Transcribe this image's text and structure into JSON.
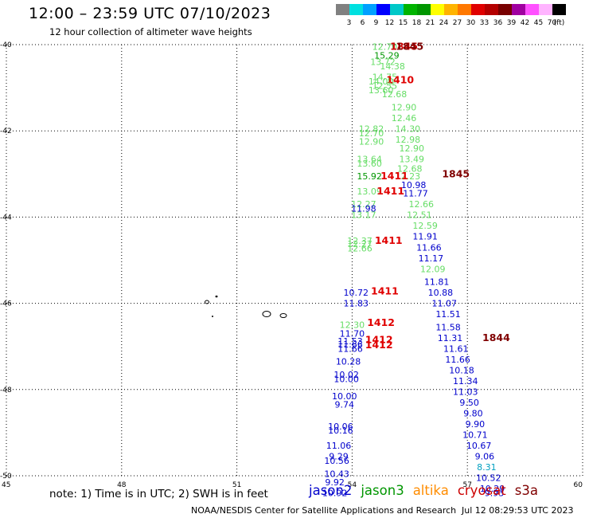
{
  "header": {
    "title": "12:00 – 23:59 UTC 07/10/2023",
    "subtitle": "12 hour collection of altimeter wave heights"
  },
  "colorbar": {
    "colors": [
      "#808080",
      "#00e0e0",
      "#00a0ff",
      "#0000ff",
      "#00c8c8",
      "#00b400",
      "#009600",
      "#ffff00",
      "#ffb400",
      "#ff7800",
      "#e00000",
      "#b40000",
      "#780000",
      "#a000a0",
      "#ff50ff",
      "#ffb4ff",
      "#000000"
    ],
    "labels": [
      "3",
      "6",
      "9",
      "12",
      "15",
      "18",
      "21",
      "24",
      "27",
      "30",
      "33",
      "36",
      "39",
      "42",
      "45",
      "70",
      "(ft)"
    ]
  },
  "footer": {
    "note": "note: 1) Time is in UTC; 2) SWH is in feet",
    "credit": "NOAA/NESDIS Center for Satellite Applications and Research",
    "timestamp": "Jul 12 08:29:53 UTC 2023"
  },
  "satellites": [
    {
      "name": "jason2",
      "color": "#0000cc"
    },
    {
      "name": "jason3",
      "color": "#009600"
    },
    {
      "name": "altika",
      "color": "#ff8c00"
    },
    {
      "name": "cryosat",
      "color": "#cc0000"
    },
    {
      "name": "s3a",
      "color": "#800000"
    }
  ],
  "chart_data": {
    "type": "scatter",
    "xlim": [
      45,
      60
    ],
    "ylim": [
      -50,
      -40
    ],
    "xticks": [
      "45",
      "48",
      "51",
      "54",
      "57",
      "60"
    ],
    "yticks": [
      "-40",
      "-42",
      "-44",
      "-46",
      "-48",
      "-50"
    ],
    "grid": true,
    "values": [
      {
        "x": 54.85,
        "y": -40.05,
        "text": "12.70",
        "color": "#66dd66"
      },
      {
        "x": 55.35,
        "y": -40.05,
        "text": "1845",
        "color": "#cc0000"
      },
      {
        "x": 55.5,
        "y": -40.05,
        "text": "1845",
        "color": "#800000"
      },
      {
        "x": 54.9,
        "y": -40.25,
        "text": "15.29",
        "color": "#009600"
      },
      {
        "x": 54.8,
        "y": -40.4,
        "text": "13.72",
        "color": "#66dd66"
      },
      {
        "x": 55.05,
        "y": -40.5,
        "text": "14.38",
        "color": "#66dd66"
      },
      {
        "x": 54.85,
        "y": -40.75,
        "text": "14.75",
        "color": "#66dd66"
      },
      {
        "x": 54.75,
        "y": -40.85,
        "text": "14.00",
        "color": "#66dd66"
      },
      {
        "x": 55.25,
        "y": -40.82,
        "text": "1410",
        "color": "#e00000"
      },
      {
        "x": 54.85,
        "y": -40.95,
        "text": "12.55",
        "color": "#66dd66"
      },
      {
        "x": 54.75,
        "y": -41.05,
        "text": "13.60",
        "color": "#66dd66"
      },
      {
        "x": 55.1,
        "y": -41.15,
        "text": "12.68",
        "color": "#66dd66"
      },
      {
        "x": 55.35,
        "y": -41.45,
        "text": "12.90",
        "color": "#66dd66"
      },
      {
        "x": 55.35,
        "y": -41.7,
        "text": "12.46",
        "color": "#66dd66"
      },
      {
        "x": 54.5,
        "y": -41.95,
        "text": "12.82",
        "color": "#66dd66"
      },
      {
        "x": 55.45,
        "y": -41.95,
        "text": "14.30",
        "color": "#66dd66"
      },
      {
        "x": 54.5,
        "y": -42.05,
        "text": "12.70",
        "color": "#66dd66"
      },
      {
        "x": 55.45,
        "y": -42.2,
        "text": "12.98",
        "color": "#66dd66"
      },
      {
        "x": 54.5,
        "y": -42.25,
        "text": "12.90",
        "color": "#66dd66"
      },
      {
        "x": 55.55,
        "y": -42.4,
        "text": "12.90",
        "color": "#66dd66"
      },
      {
        "x": 54.45,
        "y": -42.65,
        "text": "13.64",
        "color": "#66dd66"
      },
      {
        "x": 55.55,
        "y": -42.65,
        "text": "13.49",
        "color": "#66dd66"
      },
      {
        "x": 54.45,
        "y": -42.75,
        "text": "13.60",
        "color": "#66dd66"
      },
      {
        "x": 55.5,
        "y": -42.87,
        "text": "12.68",
        "color": "#66dd66"
      },
      {
        "x": 55.45,
        "y": -43.05,
        "text": "12.23",
        "color": "#66dd66"
      },
      {
        "x": 54.45,
        "y": -43.05,
        "text": "15.92",
        "color": "#009600"
      },
      {
        "x": 55.1,
        "y": -43.05,
        "text": "1411",
        "color": "#e00000"
      },
      {
        "x": 56.7,
        "y": -43.0,
        "text": "1845",
        "color": "#800000"
      },
      {
        "x": 55.6,
        "y": -43.25,
        "text": "10.98",
        "color": "#0000cc"
      },
      {
        "x": 54.45,
        "y": -43.4,
        "text": "13.09",
        "color": "#66dd66"
      },
      {
        "x": 55.0,
        "y": -43.4,
        "text": "1411",
        "color": "#e00000"
      },
      {
        "x": 55.65,
        "y": -43.45,
        "text": "11.77",
        "color": "#0000cc"
      },
      {
        "x": 54.3,
        "y": -43.7,
        "text": "12.27",
        "color": "#66dd66"
      },
      {
        "x": 54.3,
        "y": -43.8,
        "text": "11.98",
        "color": "#0000cc"
      },
      {
        "x": 55.8,
        "y": -43.7,
        "text": "12.66",
        "color": "#66dd66"
      },
      {
        "x": 54.3,
        "y": -43.95,
        "text": "13.17",
        "color": "#66dd66"
      },
      {
        "x": 55.75,
        "y": -43.95,
        "text": "12.51",
        "color": "#66dd66"
      },
      {
        "x": 55.9,
        "y": -44.2,
        "text": "12.59",
        "color": "#66dd66"
      },
      {
        "x": 54.2,
        "y": -44.55,
        "text": "12.37",
        "color": "#66dd66"
      },
      {
        "x": 54.2,
        "y": -44.62,
        "text": "12.27",
        "color": "#66dd66"
      },
      {
        "x": 54.2,
        "y": -44.72,
        "text": "12.66",
        "color": "#66dd66"
      },
      {
        "x": 54.95,
        "y": -44.55,
        "text": "1411",
        "color": "#e00000"
      },
      {
        "x": 55.9,
        "y": -44.45,
        "text": "11.91",
        "color": "#0000cc"
      },
      {
        "x": 56.0,
        "y": -44.7,
        "text": "11.66",
        "color": "#0000cc"
      },
      {
        "x": 56.05,
        "y": -44.95,
        "text": "11.17",
        "color": "#0000cc"
      },
      {
        "x": 56.1,
        "y": -45.2,
        "text": "12.09",
        "color": "#66dd66"
      },
      {
        "x": 56.2,
        "y": -45.5,
        "text": "11.81",
        "color": "#0000cc"
      },
      {
        "x": 54.1,
        "y": -45.75,
        "text": "10.72",
        "color": "#0000cc"
      },
      {
        "x": 54.85,
        "y": -45.72,
        "text": "1411",
        "color": "#e00000"
      },
      {
        "x": 56.3,
        "y": -45.75,
        "text": "10.88",
        "color": "#0000cc"
      },
      {
        "x": 54.1,
        "y": -46.0,
        "text": "11.83",
        "color": "#0000cc"
      },
      {
        "x": 56.4,
        "y": -46.0,
        "text": "11.07",
        "color": "#0000cc"
      },
      {
        "x": 56.5,
        "y": -46.25,
        "text": "11.51",
        "color": "#0000cc"
      },
      {
        "x": 56.5,
        "y": -46.55,
        "text": "11.58",
        "color": "#0000cc"
      },
      {
        "x": 54.0,
        "y": -46.5,
        "text": "12.30",
        "color": "#66dd66"
      },
      {
        "x": 54.75,
        "y": -46.45,
        "text": "1412",
        "color": "#e00000"
      },
      {
        "x": 56.55,
        "y": -46.8,
        "text": "11.31",
        "color": "#0000cc"
      },
      {
        "x": 57.75,
        "y": -46.8,
        "text": "1844",
        "color": "#800000"
      },
      {
        "x": 54.0,
        "y": -46.7,
        "text": "11.70",
        "color": "#0000cc"
      },
      {
        "x": 53.95,
        "y": -46.88,
        "text": "11.53",
        "color": "#0000cc"
      },
      {
        "x": 53.95,
        "y": -46.95,
        "text": "11.66",
        "color": "#0000cc"
      },
      {
        "x": 53.95,
        "y": -47.05,
        "text": "11.66",
        "color": "#0000cc"
      },
      {
        "x": 54.7,
        "y": -46.85,
        "text": "1412",
        "color": "#e00000"
      },
      {
        "x": 54.7,
        "y": -46.97,
        "text": "1412",
        "color": "#e00000"
      },
      {
        "x": 56.7,
        "y": -47.05,
        "text": "11.61",
        "color": "#0000cc"
      },
      {
        "x": 56.75,
        "y": -47.3,
        "text": "11.66",
        "color": "#0000cc"
      },
      {
        "x": 53.9,
        "y": -47.35,
        "text": "10.28",
        "color": "#0000cc"
      },
      {
        "x": 56.85,
        "y": -47.55,
        "text": "10.18",
        "color": "#0000cc"
      },
      {
        "x": 53.85,
        "y": -47.65,
        "text": "10.02",
        "color": "#0000cc"
      },
      {
        "x": 53.85,
        "y": -47.75,
        "text": "10.00",
        "color": "#0000cc"
      },
      {
        "x": 56.95,
        "y": -47.8,
        "text": "11.34",
        "color": "#0000cc"
      },
      {
        "x": 56.95,
        "y": -48.05,
        "text": "11.03",
        "color": "#0000cc"
      },
      {
        "x": 53.8,
        "y": -48.15,
        "text": "10.00",
        "color": "#0000cc"
      },
      {
        "x": 57.05,
        "y": -48.3,
        "text": "9.50",
        "color": "#0000cc"
      },
      {
        "x": 53.8,
        "y": -48.35,
        "text": "9.74",
        "color": "#0000cc"
      },
      {
        "x": 57.15,
        "y": -48.55,
        "text": "9.80",
        "color": "#0000cc"
      },
      {
        "x": 57.2,
        "y": -48.8,
        "text": "9.90",
        "color": "#0000cc"
      },
      {
        "x": 53.7,
        "y": -48.85,
        "text": "10.06",
        "color": "#0000cc"
      },
      {
        "x": 53.7,
        "y": -48.95,
        "text": "10.16",
        "color": "#0000cc"
      },
      {
        "x": 57.2,
        "y": -49.05,
        "text": "10.71",
        "color": "#0000cc"
      },
      {
        "x": 53.65,
        "y": -49.3,
        "text": "11.06",
        "color": "#0000cc"
      },
      {
        "x": 57.3,
        "y": -49.3,
        "text": "10.67",
        "color": "#0000cc"
      },
      {
        "x": 53.65,
        "y": -49.55,
        "text": "9.29",
        "color": "#0000cc"
      },
      {
        "x": 57.45,
        "y": -49.55,
        "text": "9.06",
        "color": "#0000cc"
      },
      {
        "x": 53.6,
        "y": -49.65,
        "text": "10.56",
        "color": "#0000cc"
      },
      {
        "x": 57.5,
        "y": -49.8,
        "text": "8.31",
        "color": "#00a0c0"
      },
      {
        "x": 53.6,
        "y": -49.95,
        "text": "10.43",
        "color": "#0000cc"
      },
      {
        "x": 57.55,
        "y": -50.05,
        "text": "10.52",
        "color": "#0000cc"
      },
      {
        "x": 53.55,
        "y": -50.15,
        "text": "9.92",
        "color": "#0000cc"
      },
      {
        "x": 57.65,
        "y": -50.3,
        "text": "10.29",
        "color": "#0000cc"
      },
      {
        "x": 53.55,
        "y": -50.4,
        "text": "10.92",
        "color": "#0000cc"
      },
      {
        "x": 57.7,
        "y": -50.4,
        "text": "9.93",
        "color": "#0000cc"
      }
    ]
  }
}
